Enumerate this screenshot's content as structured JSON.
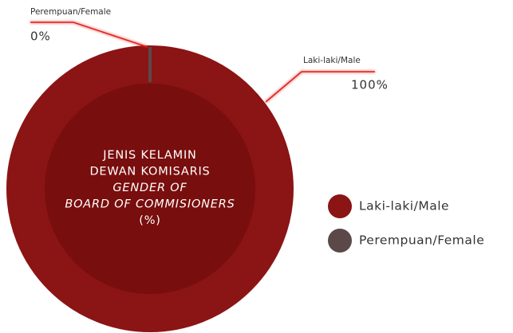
{
  "chart_data": {
    "type": "donut",
    "categories": [
      "Laki-laki/Male",
      "Perempuan/Female"
    ],
    "values": [
      100,
      0
    ],
    "value_labels": [
      "100%",
      "0%"
    ],
    "colors": [
      "#8b1414",
      "#5b4848"
    ],
    "center_text": [
      "JENIS KELAMIN",
      "DEWAN KOMISARIS",
      "GENDER OF",
      "BOARD OF COMMISIONERS",
      "(%)"
    ],
    "legend": "right"
  }
}
